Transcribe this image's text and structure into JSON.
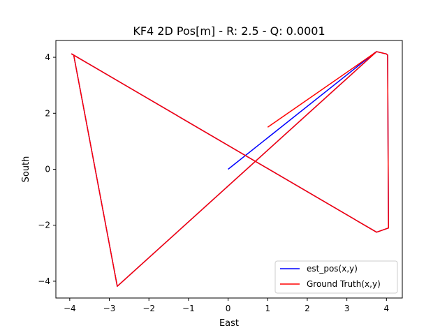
{
  "chart_data": {
    "type": "line",
    "title": "KF4 2D Pos[m] - R: 2.5 - Q: 0.0001",
    "xlabel": "East",
    "ylabel": "South",
    "xlim": [
      -4.35,
      4.4
    ],
    "ylim": [
      -4.6,
      4.6
    ],
    "x_ticks": [
      -4,
      -3,
      -2,
      -1,
      0,
      1,
      2,
      3,
      4
    ],
    "y_ticks": [
      -4,
      -2,
      0,
      2,
      4
    ],
    "x_tick_labels": [
      "−4",
      "−3",
      "−2",
      "−1",
      "0",
      "1",
      "2",
      "3",
      "4"
    ],
    "y_tick_labels": [
      "−4",
      "−2",
      "0",
      "2",
      "4"
    ],
    "grid": false,
    "legend_position": "lower-right",
    "series": [
      {
        "name": "est_pos(x,y)",
        "color": "#0000ff",
        "x": [
          0.0,
          3.72,
          3.75,
          4.0,
          4.03,
          4.05,
          3.75,
          -3.95,
          -3.9,
          -2.8,
          3.75
        ],
        "y": [
          0.0,
          4.18,
          4.2,
          4.12,
          4.08,
          -2.1,
          -2.25,
          4.12,
          4.08,
          -4.18,
          4.2
        ]
      },
      {
        "name": "Ground Truth(x,y)",
        "color": "#ff0000",
        "x": [
          1.0,
          3.75,
          4.0,
          4.03,
          4.05,
          3.75,
          -3.95,
          -3.9,
          -2.8,
          3.75
        ],
        "y": [
          1.5,
          4.2,
          4.12,
          4.08,
          -2.1,
          -2.25,
          4.12,
          4.08,
          -4.18,
          4.2
        ]
      }
    ]
  }
}
